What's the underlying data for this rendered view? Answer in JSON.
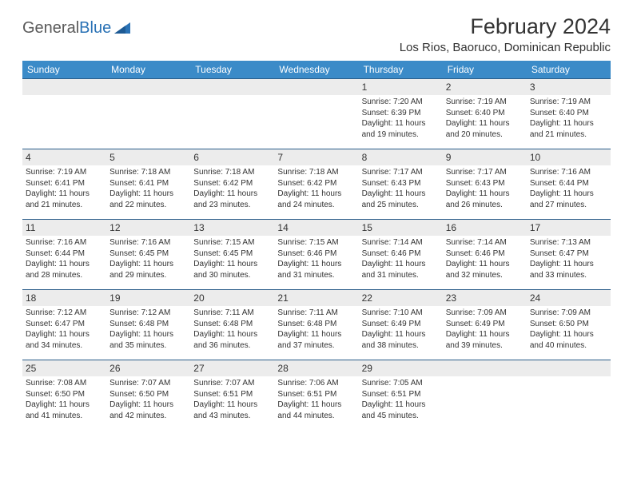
{
  "logo": {
    "word1": "General",
    "word2": "Blue"
  },
  "title": "February 2024",
  "location": "Los Rios, Baoruco, Dominican Republic",
  "colors": {
    "header_bar": "#3b8bc8",
    "daynum_bg": "#ececec",
    "border": "#2a5d8a",
    "text": "#333333",
    "logo_gray": "#5a5a5a",
    "logo_blue": "#2a72b5"
  },
  "dayNames": [
    "Sunday",
    "Monday",
    "Tuesday",
    "Wednesday",
    "Thursday",
    "Friday",
    "Saturday"
  ],
  "weeks": [
    [
      {
        "blank": true
      },
      {
        "blank": true
      },
      {
        "blank": true
      },
      {
        "blank": true
      },
      {
        "n": "1",
        "sr": "7:20 AM",
        "ss": "6:39 PM",
        "dl": "11 hours and 19 minutes."
      },
      {
        "n": "2",
        "sr": "7:19 AM",
        "ss": "6:40 PM",
        "dl": "11 hours and 20 minutes."
      },
      {
        "n": "3",
        "sr": "7:19 AM",
        "ss": "6:40 PM",
        "dl": "11 hours and 21 minutes."
      }
    ],
    [
      {
        "n": "4",
        "sr": "7:19 AM",
        "ss": "6:41 PM",
        "dl": "11 hours and 21 minutes."
      },
      {
        "n": "5",
        "sr": "7:18 AM",
        "ss": "6:41 PM",
        "dl": "11 hours and 22 minutes."
      },
      {
        "n": "6",
        "sr": "7:18 AM",
        "ss": "6:42 PM",
        "dl": "11 hours and 23 minutes."
      },
      {
        "n": "7",
        "sr": "7:18 AM",
        "ss": "6:42 PM",
        "dl": "11 hours and 24 minutes."
      },
      {
        "n": "8",
        "sr": "7:17 AM",
        "ss": "6:43 PM",
        "dl": "11 hours and 25 minutes."
      },
      {
        "n": "9",
        "sr": "7:17 AM",
        "ss": "6:43 PM",
        "dl": "11 hours and 26 minutes."
      },
      {
        "n": "10",
        "sr": "7:16 AM",
        "ss": "6:44 PM",
        "dl": "11 hours and 27 minutes."
      }
    ],
    [
      {
        "n": "11",
        "sr": "7:16 AM",
        "ss": "6:44 PM",
        "dl": "11 hours and 28 minutes."
      },
      {
        "n": "12",
        "sr": "7:16 AM",
        "ss": "6:45 PM",
        "dl": "11 hours and 29 minutes."
      },
      {
        "n": "13",
        "sr": "7:15 AM",
        "ss": "6:45 PM",
        "dl": "11 hours and 30 minutes."
      },
      {
        "n": "14",
        "sr": "7:15 AM",
        "ss": "6:46 PM",
        "dl": "11 hours and 31 minutes."
      },
      {
        "n": "15",
        "sr": "7:14 AM",
        "ss": "6:46 PM",
        "dl": "11 hours and 31 minutes."
      },
      {
        "n": "16",
        "sr": "7:14 AM",
        "ss": "6:46 PM",
        "dl": "11 hours and 32 minutes."
      },
      {
        "n": "17",
        "sr": "7:13 AM",
        "ss": "6:47 PM",
        "dl": "11 hours and 33 minutes."
      }
    ],
    [
      {
        "n": "18",
        "sr": "7:12 AM",
        "ss": "6:47 PM",
        "dl": "11 hours and 34 minutes."
      },
      {
        "n": "19",
        "sr": "7:12 AM",
        "ss": "6:48 PM",
        "dl": "11 hours and 35 minutes."
      },
      {
        "n": "20",
        "sr": "7:11 AM",
        "ss": "6:48 PM",
        "dl": "11 hours and 36 minutes."
      },
      {
        "n": "21",
        "sr": "7:11 AM",
        "ss": "6:48 PM",
        "dl": "11 hours and 37 minutes."
      },
      {
        "n": "22",
        "sr": "7:10 AM",
        "ss": "6:49 PM",
        "dl": "11 hours and 38 minutes."
      },
      {
        "n": "23",
        "sr": "7:09 AM",
        "ss": "6:49 PM",
        "dl": "11 hours and 39 minutes."
      },
      {
        "n": "24",
        "sr": "7:09 AM",
        "ss": "6:50 PM",
        "dl": "11 hours and 40 minutes."
      }
    ],
    [
      {
        "n": "25",
        "sr": "7:08 AM",
        "ss": "6:50 PM",
        "dl": "11 hours and 41 minutes."
      },
      {
        "n": "26",
        "sr": "7:07 AM",
        "ss": "6:50 PM",
        "dl": "11 hours and 42 minutes."
      },
      {
        "n": "27",
        "sr": "7:07 AM",
        "ss": "6:51 PM",
        "dl": "11 hours and 43 minutes."
      },
      {
        "n": "28",
        "sr": "7:06 AM",
        "ss": "6:51 PM",
        "dl": "11 hours and 44 minutes."
      },
      {
        "n": "29",
        "sr": "7:05 AM",
        "ss": "6:51 PM",
        "dl": "11 hours and 45 minutes."
      },
      {
        "blank": true
      },
      {
        "blank": true
      }
    ]
  ],
  "labels": {
    "sunrise": "Sunrise: ",
    "sunset": "Sunset: ",
    "daylight": "Daylight: "
  }
}
